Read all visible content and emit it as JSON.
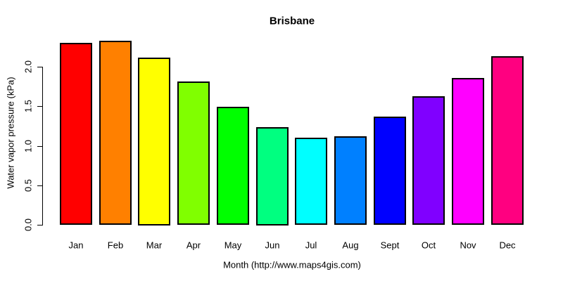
{
  "chart_data": {
    "type": "bar",
    "title": "Brisbane",
    "xlabel": "Month (http://www.maps4gis.com)",
    "ylabel": "Water vapor pressure (kPa)",
    "categories": [
      "Jan",
      "Feb",
      "Mar",
      "Apr",
      "May",
      "Jun",
      "Jul",
      "Aug",
      "Sept",
      "Oct",
      "Nov",
      "Dec"
    ],
    "values": [
      2.3,
      2.33,
      2.12,
      1.81,
      1.49,
      1.24,
      1.1,
      1.12,
      1.37,
      1.63,
      1.86,
      2.13
    ],
    "bar_colors": [
      "#FF0000",
      "#FF8000",
      "#FFFF00",
      "#80FF00",
      "#00FF00",
      "#00FF80",
      "#00FFFF",
      "#0080FF",
      "#0000FF",
      "#8000FF",
      "#FF00FF",
      "#FF0080"
    ],
    "bar_border_color": "#000000",
    "axis_color": "#000000",
    "background_color": "#FFFFFF",
    "ytick_labels": [
      "0.0",
      "0.5",
      "1.0",
      "1.5",
      "2.0"
    ],
    "ylim": [
      0,
      2.4
    ],
    "grid": false,
    "legend": "none"
  }
}
